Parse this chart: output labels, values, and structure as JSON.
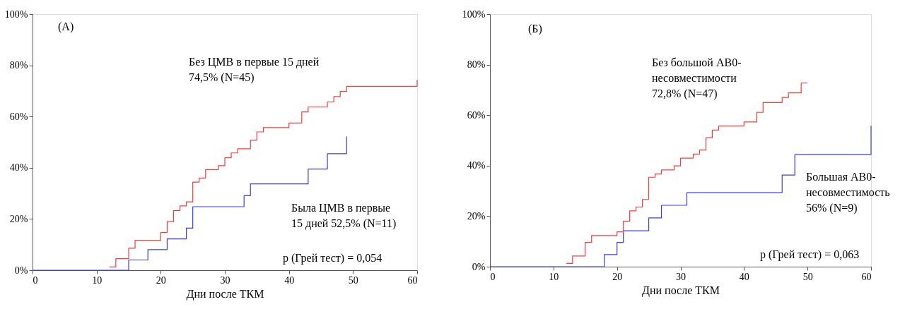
{
  "chart_data": [
    {
      "type": "step",
      "title": "(A)",
      "xlabel": "Дни после ТКМ",
      "xlim": [
        0,
        60
      ],
      "xticks": [
        0,
        10,
        20,
        30,
        40,
        50,
        60
      ],
      "ylim": [
        0,
        100
      ],
      "yticks": [
        {
          "value": 0,
          "label": "0%"
        },
        {
          "value": 20,
          "label": "20%"
        },
        {
          "value": 40,
          "label": "40%"
        },
        {
          "value": 60,
          "label": "60%"
        },
        {
          "value": 80,
          "label": "80%"
        },
        {
          "value": 100,
          "label": "100%"
        }
      ],
      "grid": false,
      "line_style": "solid",
      "marker": "none",
      "series": [
        {
          "color": "#ff3b3b",
          "x": [
            12,
            13,
            15,
            16,
            20,
            21,
            22,
            23,
            24,
            25,
            26,
            27,
            29,
            30,
            31,
            32,
            34,
            35,
            36,
            40,
            42,
            43,
            46,
            47,
            48,
            49,
            60
          ],
          "values": [
            1.3,
            4.5,
            8.6,
            11.7,
            14.7,
            19,
            23.3,
            25.1,
            26.7,
            34.4,
            36,
            39.3,
            40.8,
            43.9,
            45.8,
            47.4,
            50.8,
            54,
            55.7,
            57.5,
            61.8,
            63.7,
            65.7,
            67.8,
            69.8,
            71.8,
            74.3
          ]
        },
        {
          "color": "#3b3bff",
          "x": [
            0,
            15,
            18,
            21,
            24,
            25,
            33,
            34,
            43,
            46,
            49
          ],
          "values": [
            0,
            4,
            8,
            12.2,
            16.4,
            24.8,
            29.1,
            33.7,
            39.5,
            45.5,
            52.2
          ]
        }
      ],
      "annotations": [
        "Без ЦМВ  в первые 15 дней\n74,5% (N=45)",
        "Была ЦМВ  в первые\n\n15 дней 52,5% (N=11)",
        "p (Грей тест) = 0,054"
      ]
    },
    {
      "type": "step",
      "title": "(Б)",
      "xlabel": "Дни после ТКМ",
      "xlim": [
        0,
        60
      ],
      "xticks": [
        0,
        10,
        20,
        30,
        40,
        50,
        60
      ],
      "ylim": [
        0,
        100
      ],
      "yticks": [
        {
          "value": 0,
          "label": "0%"
        },
        {
          "value": 20,
          "label": "20%"
        },
        {
          "value": 40,
          "label": "40%"
        },
        {
          "value": 60,
          "label": "60%"
        },
        {
          "value": 80,
          "label": "80%"
        },
        {
          "value": 100,
          "label": "100%"
        }
      ],
      "grid": false,
      "line_style": "solid",
      "marker": "none",
      "series": [
        {
          "color": "#ff3b3b",
          "x": [
            12,
            13,
            15,
            16,
            20,
            21,
            22,
            23,
            24,
            25,
            26,
            27,
            29,
            30,
            32,
            33,
            34,
            35,
            36,
            40,
            42,
            43,
            46,
            47,
            49,
            50
          ],
          "values": [
            1.3,
            4.2,
            9.6,
            12.3,
            13.8,
            18,
            22.1,
            23.6,
            26.6,
            35.4,
            36.7,
            38.3,
            39.9,
            43,
            44.6,
            46.2,
            51,
            54.1,
            55.7,
            57.3,
            61.1,
            65,
            67,
            68.8,
            72.7,
            72.7
          ]
        },
        {
          "color": "#3b3bff",
          "x": [
            0,
            18,
            20,
            21,
            25,
            27,
            31,
            46,
            48,
            60
          ],
          "values": [
            0,
            4.8,
            9.6,
            14.2,
            19.3,
            24.3,
            29.3,
            36.3,
            44.4,
            55.8
          ]
        }
      ],
      "annotations": [
        "Без большой АВ0-\nнесовместимости\n72,8% (N=47)",
        "Большая АВ0-\nнесовместимость\n56% (N=9)",
        "p (Грей тест) = 0,063"
      ]
    }
  ]
}
